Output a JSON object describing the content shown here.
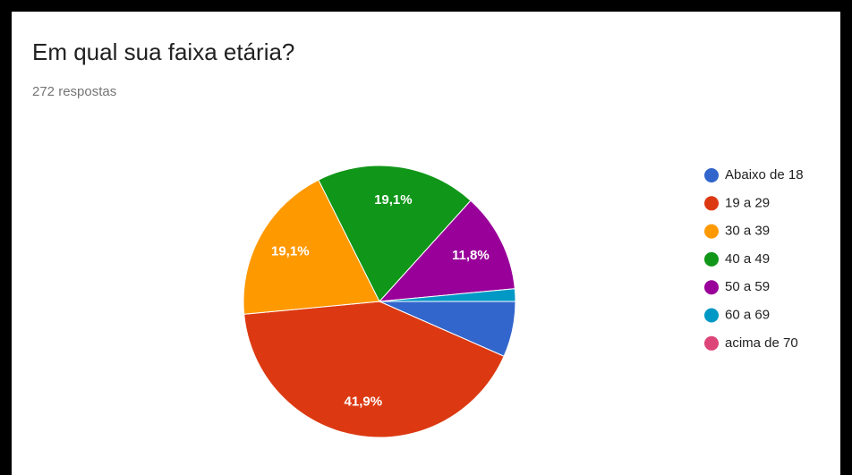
{
  "chart_data": {
    "type": "pie",
    "title": "Em qual sua faixa etária?",
    "subtitle": "272 respostas",
    "categories": [
      "Abaixo de 18",
      "19 a 29",
      "30 a 39",
      "40 a 49",
      "50 a 59",
      "60 a 69",
      "acima de 70"
    ],
    "values": [
      6.6,
      41.9,
      19.1,
      19.1,
      11.8,
      1.5,
      0
    ],
    "value_labels": [
      null,
      "41,9%",
      "19,1%",
      "19,1%",
      "11,8%",
      null,
      null
    ],
    "colors": [
      "#3366cc",
      "#dc3912",
      "#ff9900",
      "#109618",
      "#990099",
      "#0099c6",
      "#dd4477"
    ],
    "legend": "right"
  }
}
